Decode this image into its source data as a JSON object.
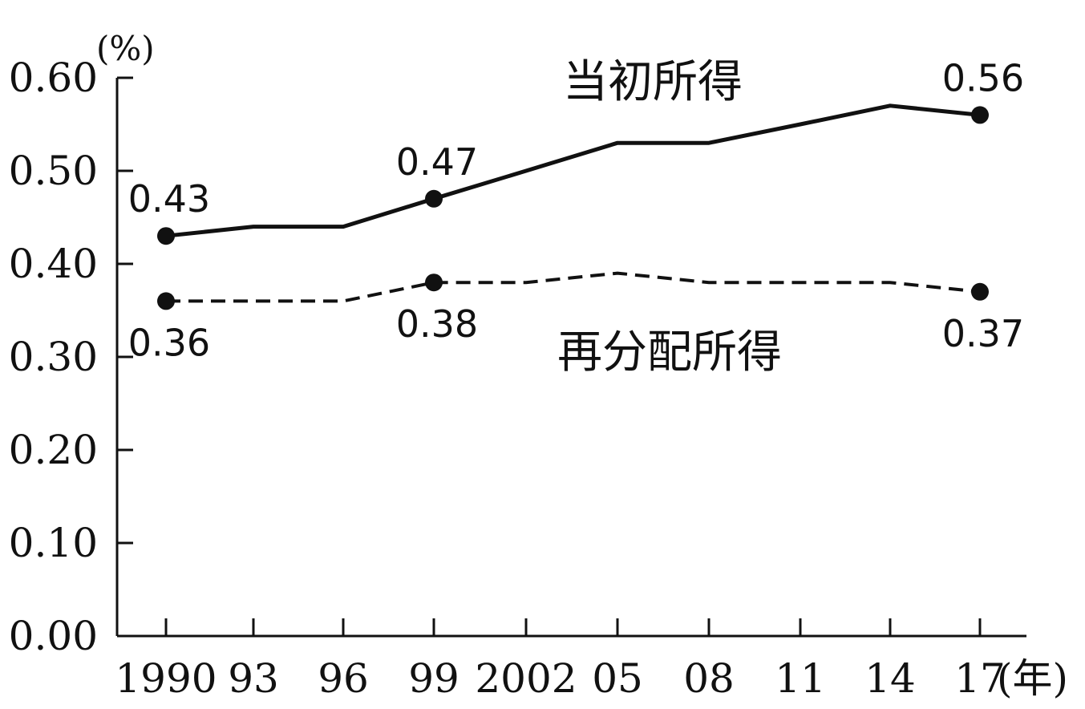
{
  "chart_data": {
    "type": "line",
    "y_unit": "(%)",
    "x_unit": "(年)",
    "categories": [
      "1990",
      "93",
      "96",
      "99",
      "2002",
      "05",
      "08",
      "11",
      "14",
      "17"
    ],
    "y_ticks": [
      "0.00",
      "0.10",
      "0.20",
      "0.30",
      "0.40",
      "0.50",
      "0.60"
    ],
    "ylim": [
      0,
      0.6
    ],
    "grid": false,
    "series": [
      {
        "name": "当初所得",
        "style": "solid",
        "values": [
          0.43,
          0.44,
          0.44,
          0.47,
          0.5,
          0.53,
          0.53,
          0.55,
          0.57,
          0.56
        ],
        "labels": [
          {
            "index": 0,
            "text": "0.43"
          },
          {
            "index": 3,
            "text": "0.47"
          },
          {
            "index": 9,
            "text": "0.56"
          }
        ]
      },
      {
        "name": "再分配所得",
        "style": "dashed",
        "values": [
          0.36,
          0.36,
          0.36,
          0.38,
          0.38,
          0.39,
          0.38,
          0.38,
          0.38,
          0.37
        ],
        "labels": [
          {
            "index": 0,
            "text": "0.36"
          },
          {
            "index": 3,
            "text": "0.38"
          },
          {
            "index": 9,
            "text": "0.37"
          }
        ]
      }
    ],
    "marker_indices": [
      0,
      3,
      9
    ]
  }
}
